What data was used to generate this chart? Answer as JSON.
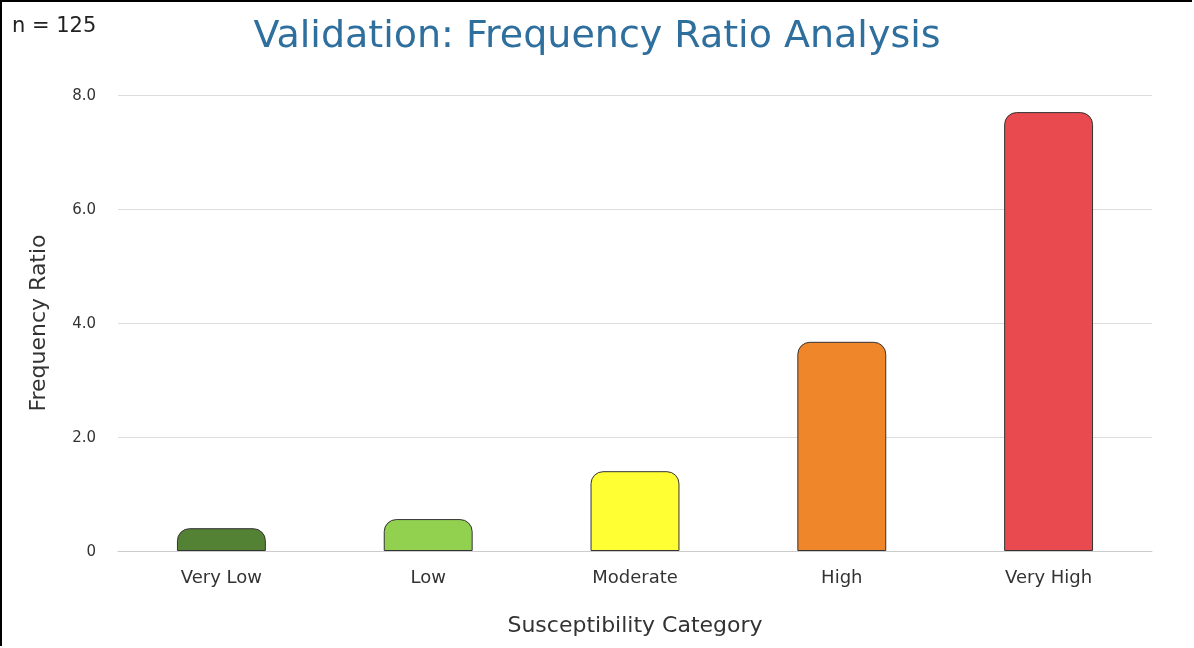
{
  "chart_data": {
    "type": "bar",
    "title": "Validation: Frequency Ratio Analysis",
    "xlabel": "Susceptibility Category",
    "ylabel": "Frequency Ratio",
    "annotations": [
      "n = 125"
    ],
    "categories": [
      "Very Low",
      "Low",
      "Moderate",
      "High",
      "Very High"
    ],
    "values": [
      0.4,
      0.56,
      1.4,
      3.67,
      7.7
    ],
    "colors": [
      "#548235",
      "#92d050",
      "#ffff33",
      "#f0862a",
      "#e84a4f"
    ],
    "ylim": [
      0,
      8
    ],
    "yticks": [
      0,
      {
        "value": 2,
        "label": "2.0"
      },
      {
        "value": 4,
        "label": "4.0"
      },
      {
        "value": 6,
        "label": "6.0"
      },
      {
        "value": 8,
        "label": "8.0"
      }
    ],
    "grid": "y"
  }
}
